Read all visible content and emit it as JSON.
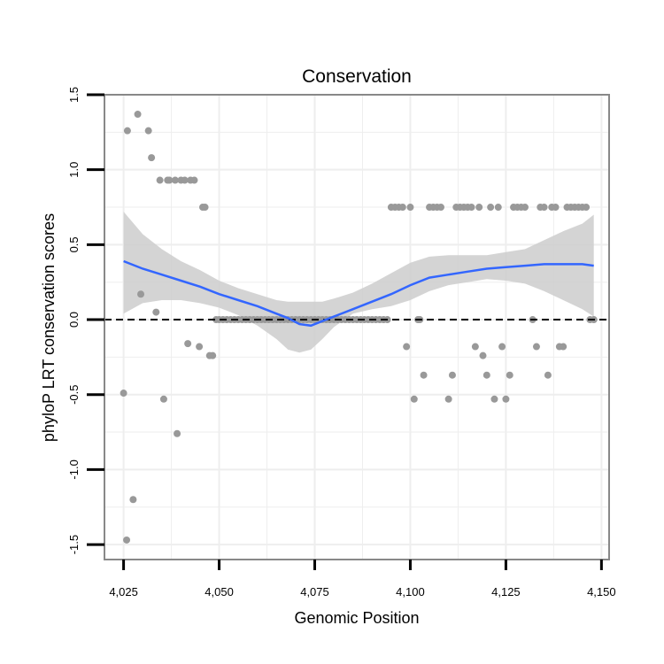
{
  "chart_data": {
    "type": "scatter",
    "title": "Conservation",
    "xlabel": "Genomic Position",
    "ylabel": "phyloP LRT conservation scores",
    "xlim": [
      4020,
      4152
    ],
    "ylim": [
      -1.6,
      1.5
    ],
    "x_ticks": [
      4025,
      4050,
      4075,
      4100,
      4125,
      4150
    ],
    "x_tick_labels": [
      "4,025",
      "4,050",
      "4,075",
      "4,100",
      "4,125",
      "4,150"
    ],
    "y_ticks": [
      -1.5,
      -1.0,
      -0.5,
      0.0,
      0.5,
      1.0,
      1.5
    ],
    "y_tick_labels": [
      "-1.5",
      "-1.0",
      "-0.5",
      "0.0",
      "0.5",
      "1.0",
      "1.5"
    ],
    "grid": true,
    "reference_line": {
      "y": 0,
      "style": "dashed"
    },
    "colors": {
      "points": "#999999",
      "smooth": "#3366ff",
      "ribbon": "#cccccc",
      "grid": "#eeeeee",
      "panel_border": "#888888"
    },
    "series": [
      {
        "name": "scores",
        "kind": "points",
        "x": [
          4025,
          4025.8,
          4026,
          4027.5,
          4028.7,
          4029.5,
          4031.5,
          4032.3,
          4033.5,
          4034.5,
          4035.5,
          4036.5,
          4037,
          4038.5,
          4039,
          4040,
          4041,
          4041.8,
          4042.5,
          4043.5,
          4044.8,
          4045.7,
          4046.3,
          4047.5,
          4048.3,
          4049.2,
          4050,
          4051,
          4052,
          4053,
          4054,
          4055,
          4056,
          4057,
          4058,
          4059,
          4060,
          4061,
          4062,
          4063,
          4064,
          4065,
          4066,
          4067,
          4068,
          4069,
          4070,
          4071,
          4072,
          4073,
          4074,
          4075,
          4076,
          4077,
          4078,
          4079,
          4080,
          4081,
          4082,
          4083,
          4084,
          4085,
          4086,
          4087,
          4088,
          4089,
          4090,
          4091,
          4092,
          4093,
          4094,
          4095,
          4096,
          4097,
          4098,
          4099,
          4100,
          4101,
          4102,
          4102.5,
          4103.5,
          4105,
          4106,
          4107,
          4108,
          4110,
          4111,
          4112,
          4113,
          4114,
          4115,
          4116,
          4117,
          4118,
          4119,
          4120,
          4121,
          4122,
          4123,
          4124,
          4125,
          4126,
          4127,
          4128,
          4129,
          4130,
          4132,
          4133,
          4134,
          4135,
          4136,
          4137,
          4138,
          4139,
          4140,
          4141,
          4142,
          4143,
          4144,
          4145,
          4146,
          4147,
          4148
        ],
        "y": [
          -0.49,
          -1.47,
          1.26,
          -1.2,
          1.37,
          0.17,
          1.26,
          1.08,
          0.05,
          0.93,
          -0.53,
          0.93,
          0.93,
          0.93,
          -0.76,
          0.93,
          0.93,
          -0.16,
          0.93,
          0.93,
          -0.18,
          0.75,
          0.75,
          -0.24,
          -0.24,
          0.0,
          0,
          0,
          0,
          0,
          0,
          0,
          0,
          0,
          0,
          0,
          0,
          0,
          0,
          0,
          0,
          0,
          0,
          0,
          0,
          0,
          0,
          0,
          0,
          0,
          0,
          0,
          0,
          0,
          0,
          0,
          0,
          0,
          0,
          0,
          0,
          0,
          0,
          0,
          0,
          0,
          0,
          0,
          0,
          0,
          0,
          0.75,
          0.75,
          0.75,
          0.75,
          -0.18,
          0.75,
          -0.53,
          0.0,
          0.0,
          -0.37,
          0.75,
          0.75,
          0.75,
          0.75,
          -0.53,
          -0.37,
          0.75,
          0.75,
          0.75,
          0.75,
          0.75,
          -0.18,
          0.75,
          -0.24,
          -0.37,
          0.75,
          -0.53,
          0.75,
          -0.18,
          -0.53,
          -0.37,
          0.75,
          0.75,
          0.75,
          0.75,
          0.0,
          -0.18,
          0.75,
          0.75,
          -0.37,
          0.75,
          0.75,
          -0.18,
          -0.18,
          0.75,
          0.75,
          0.75,
          0.75,
          0.75,
          0.75,
          0.0,
          0.0
        ]
      },
      {
        "name": "smooth",
        "kind": "line",
        "x": [
          4025,
          4030,
          4035,
          4040,
          4045,
          4050,
          4055,
          4060,
          4065,
          4068,
          4071,
          4074,
          4077,
          4080,
          4085,
          4090,
          4095,
          4100,
          4105,
          4110,
          4115,
          4120,
          4125,
          4130,
          4135,
          4140,
          4145,
          4148
        ],
        "y": [
          0.39,
          0.34,
          0.3,
          0.26,
          0.22,
          0.17,
          0.13,
          0.09,
          0.04,
          0.01,
          -0.03,
          -0.04,
          -0.01,
          0.02,
          0.07,
          0.12,
          0.17,
          0.23,
          0.28,
          0.3,
          0.32,
          0.34,
          0.35,
          0.36,
          0.37,
          0.37,
          0.37,
          0.36
        ]
      },
      {
        "name": "confidence band",
        "kind": "ribbon",
        "x": [
          4025,
          4030,
          4035,
          4040,
          4045,
          4050,
          4055,
          4060,
          4065,
          4068,
          4071,
          4074,
          4077,
          4080,
          4085,
          4090,
          4095,
          4100,
          4105,
          4110,
          4115,
          4120,
          4125,
          4130,
          4135,
          4140,
          4145,
          4148
        ],
        "y_low": [
          0.04,
          0.11,
          0.13,
          0.13,
          0.11,
          0.08,
          0.03,
          -0.04,
          -0.13,
          -0.2,
          -0.22,
          -0.2,
          -0.13,
          -0.05,
          0.04,
          0.07,
          0.09,
          0.13,
          0.19,
          0.23,
          0.25,
          0.27,
          0.26,
          0.24,
          0.19,
          0.13,
          0.07,
          0.02
        ],
        "y_high": [
          0.72,
          0.57,
          0.47,
          0.39,
          0.33,
          0.26,
          0.21,
          0.17,
          0.13,
          0.12,
          0.12,
          0.12,
          0.12,
          0.14,
          0.18,
          0.24,
          0.31,
          0.38,
          0.42,
          0.43,
          0.43,
          0.43,
          0.45,
          0.47,
          0.53,
          0.59,
          0.64,
          0.7
        ]
      }
    ]
  }
}
